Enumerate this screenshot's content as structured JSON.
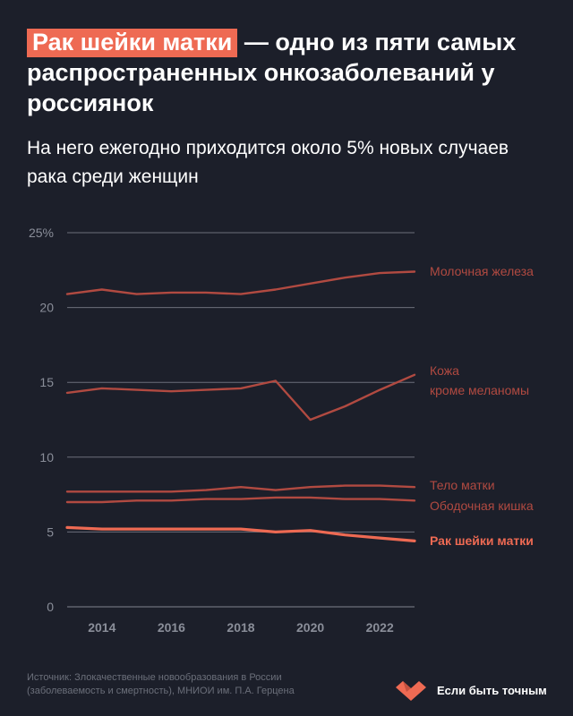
{
  "header": {
    "title_highlight": "Рак шейки матки",
    "title_rest": " — одно из пяти самых распространенных онкозаболеваний у россиянок",
    "subtitle": "На него ежегодно приходится около 5% новых случаев рака среди женщин"
  },
  "footer": {
    "source_line1": "Источник: Злокачественные новообразования в России",
    "source_line2": "(заболеваемость и смертность), МНИОИ им. П.А. Герцена",
    "brand": "Если быть точным",
    "brand_icon": "heart-checkmark-icon"
  },
  "colors": {
    "background": "#1c1f2a",
    "line": "#b14a41",
    "highlight": "#ee6a53",
    "grid": "#6b6f7a",
    "tick": "#8a8e99"
  },
  "chart_data": {
    "type": "line",
    "x": [
      2013,
      2014,
      2015,
      2016,
      2017,
      2018,
      2019,
      2020,
      2021,
      2022,
      2023
    ],
    "xticks": [
      2014,
      2016,
      2018,
      2020,
      2022
    ],
    "yticks": [
      0,
      5,
      10,
      15,
      20,
      25
    ],
    "ytick_labels": [
      "0",
      "5",
      "10",
      "15",
      "20",
      "25%"
    ],
    "ylim": [
      0,
      25
    ],
    "xlim": [
      2013,
      2023
    ],
    "grid": "horizontal",
    "series": [
      {
        "name": "Молочная железа",
        "values": [
          20.9,
          21.2,
          20.9,
          21.0,
          21.0,
          20.9,
          21.2,
          21.6,
          22.0,
          22.3,
          22.4
        ],
        "highlight": false
      },
      {
        "name": "Кожа кроме меланомы",
        "label_lines": [
          "Кожа",
          "кроме меланомы"
        ],
        "values": [
          14.3,
          14.6,
          14.5,
          14.4,
          14.5,
          14.6,
          15.1,
          12.5,
          13.4,
          14.5,
          15.5
        ],
        "highlight": false
      },
      {
        "name": "Тело матки",
        "values": [
          7.7,
          7.7,
          7.7,
          7.7,
          7.8,
          8.0,
          7.8,
          8.0,
          8.1,
          8.1,
          8.0
        ],
        "highlight": false
      },
      {
        "name": "Ободочная кишка",
        "values": [
          7.0,
          7.0,
          7.1,
          7.1,
          7.2,
          7.2,
          7.3,
          7.3,
          7.2,
          7.2,
          7.1
        ],
        "highlight": false
      },
      {
        "name": "Рак шейки матки",
        "values": [
          5.3,
          5.2,
          5.2,
          5.2,
          5.2,
          5.2,
          5.0,
          5.1,
          4.8,
          4.6,
          4.4
        ],
        "highlight": true
      }
    ]
  }
}
